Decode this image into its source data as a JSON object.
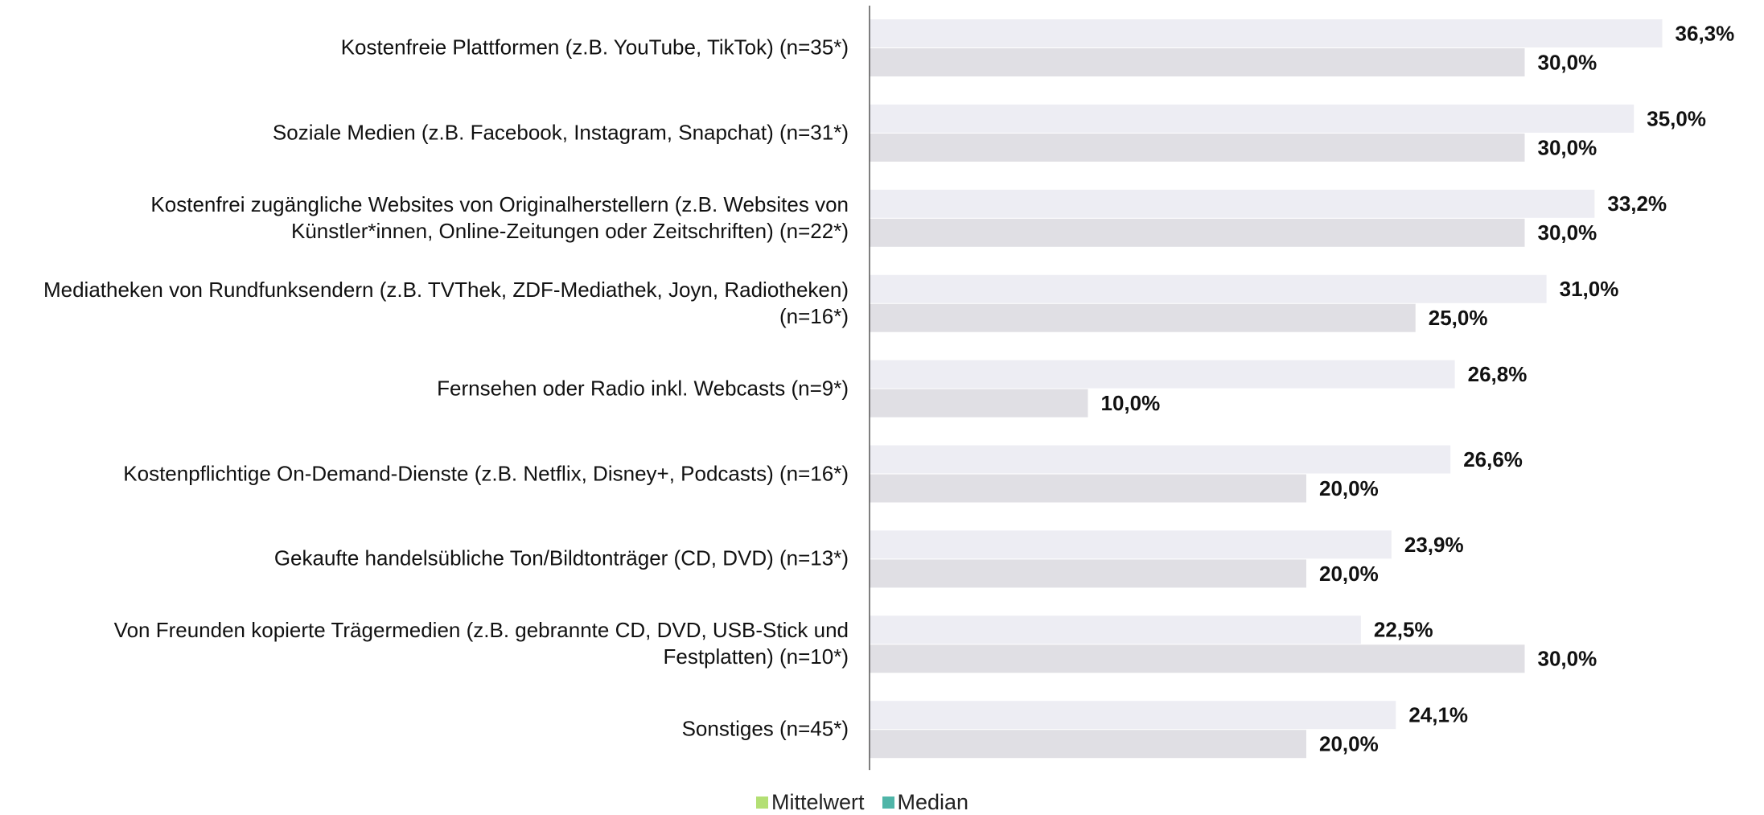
{
  "chart_data": {
    "type": "barh",
    "categories": [
      "Kostenfreie Plattformen (z.B. YouTube, TikTok) (n=35*)",
      "Soziale Medien (z.B. Facebook, Instagram, Snapchat) (n=31*)",
      "Kostenfrei zugängliche Websites von Originalherstellern (z.B. Websites von Künstler*innen, Online-Zeitungen oder Zeitschriften) (n=22*)",
      "Mediatheken von Rundfunksendern (z.B. TVThek, ZDF-Mediathek, Joyn, Radiotheken) (n=16*)",
      "Fernsehen oder Radio inkl. Webcasts (n=9*)",
      "Kostenpflichtige On-Demand-Dienste (z.B. Netflix, Disney+, Podcasts) (n=16*)",
      "Gekaufte handelsübliche Ton/Bildtonträger (CD, DVD) (n=13*)",
      "Von Freunden kopierte Trägermedien (z.B. gebrannte CD, DVD, USB-Stick und Festplatten) (n=10*)",
      "Sonstiges (n=45*)"
    ],
    "series": [
      {
        "name": "Mittelwert",
        "color": "#ededf3",
        "legend_color": "#b3df74",
        "values": [
          36.3,
          35.0,
          33.2,
          31.0,
          26.8,
          26.6,
          23.9,
          22.5,
          24.1
        ],
        "value_labels": [
          "36,3%",
          "35,0%",
          "33,2%",
          "31,0%",
          "26,8%",
          "26,6%",
          "23,9%",
          "22,5%",
          "24,1%"
        ]
      },
      {
        "name": "Median",
        "color": "#e0dfe4",
        "legend_color": "#4fb5a8",
        "values": [
          30.0,
          30.0,
          30.0,
          25.0,
          10.0,
          20.0,
          20.0,
          30.0,
          20.0
        ],
        "value_labels": [
          "30,0%",
          "30,0%",
          "30,0%",
          "25,0%",
          "10,0%",
          "20,0%",
          "20,0%",
          "30,0%",
          "20,0%"
        ]
      }
    ],
    "xlim": [
      0,
      40
    ]
  }
}
